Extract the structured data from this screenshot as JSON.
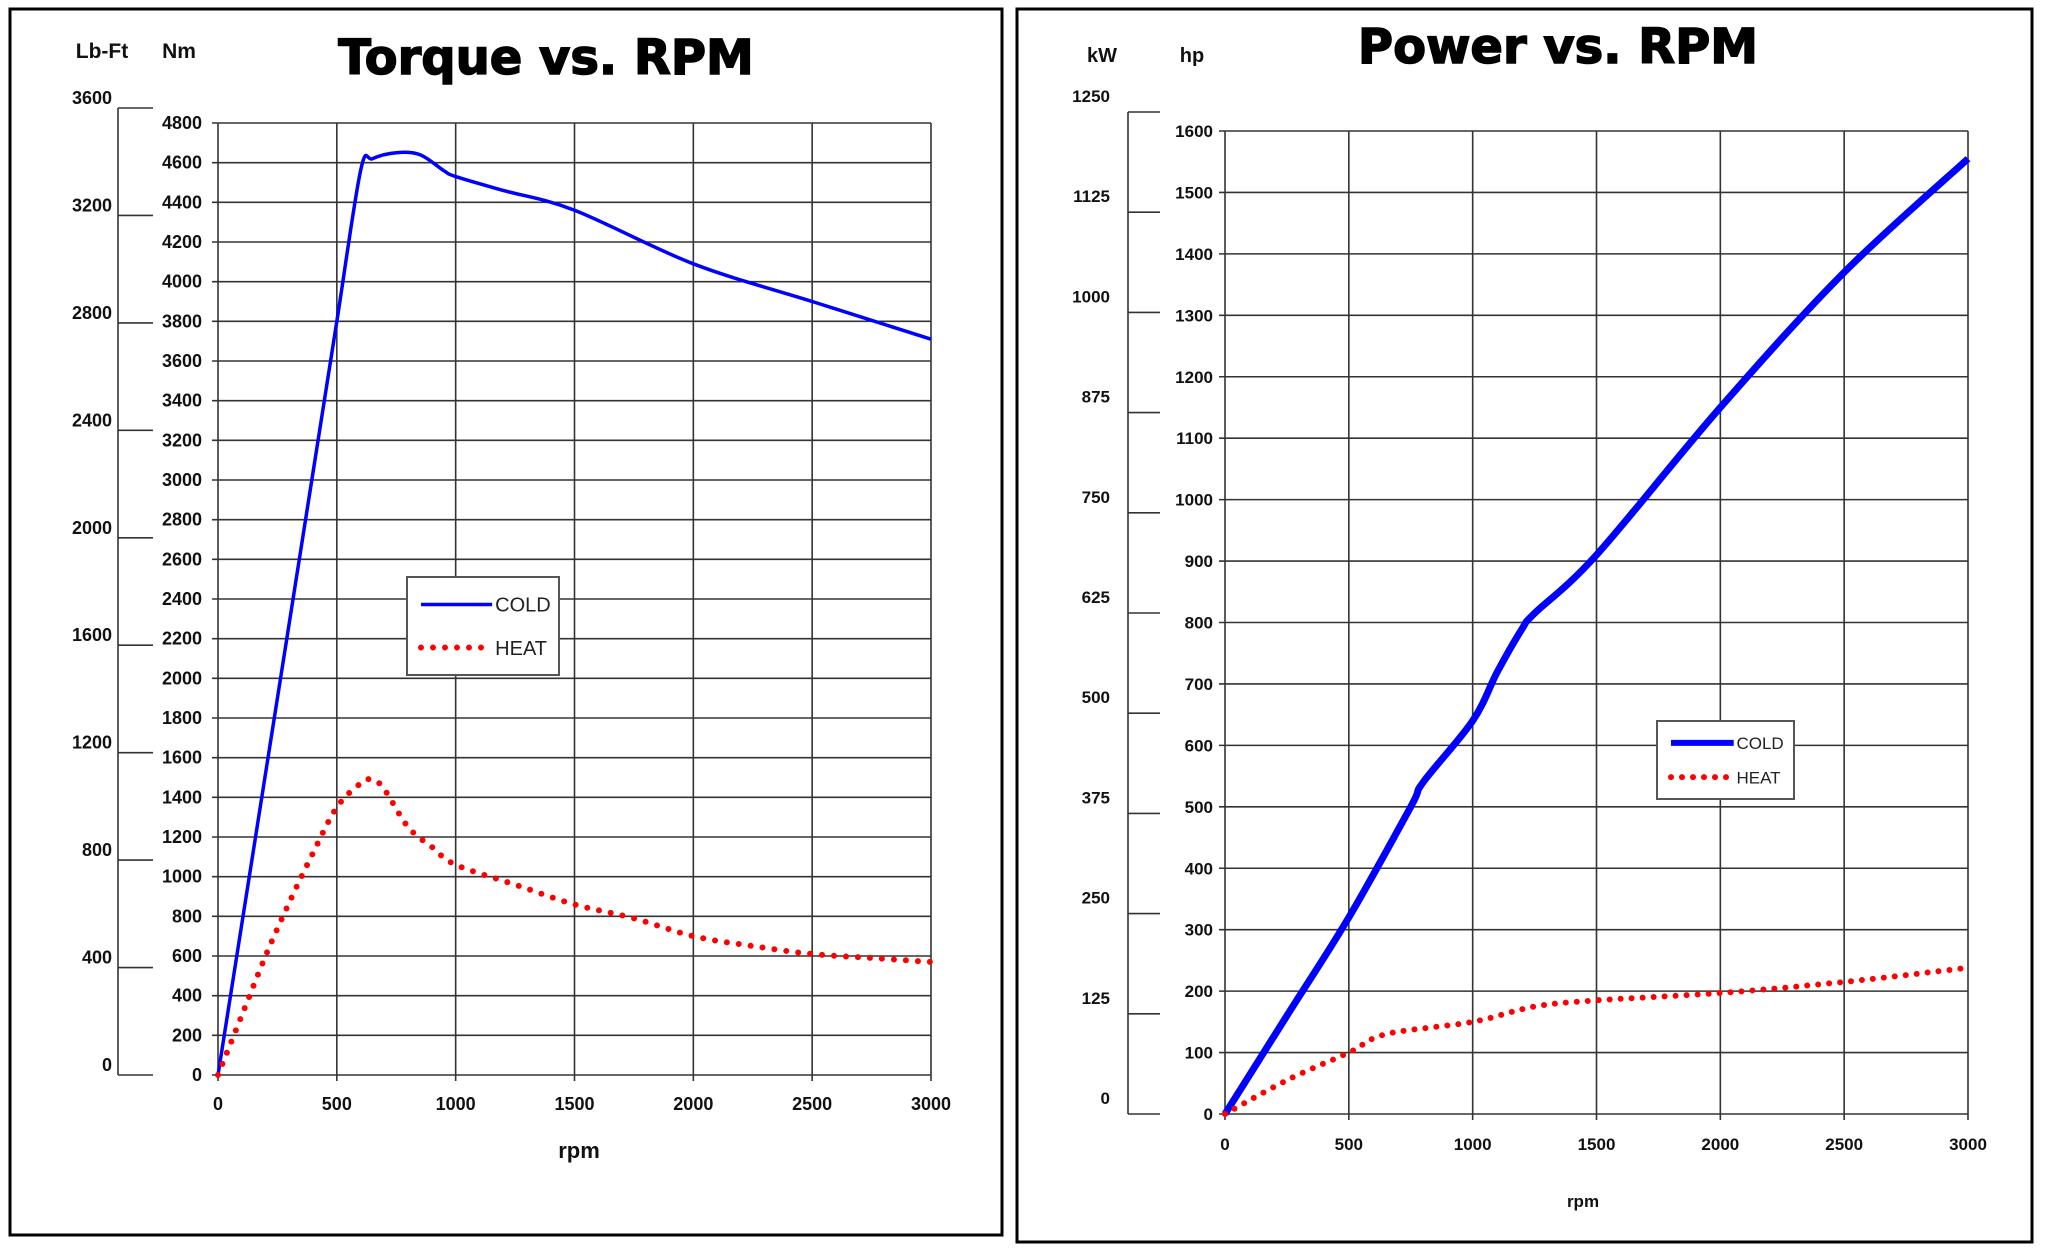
{
  "chart_data": [
    {
      "type": "line",
      "title": "Torque vs. RPM",
      "xlabel": "rpm",
      "ylabel": "Nm",
      "y2label": "Lb-Ft",
      "xlim": [
        0,
        3000
      ],
      "ylim": [
        0,
        4800
      ],
      "y2lim": [
        0,
        3600
      ],
      "xticks": [
        "0",
        "500",
        "1000",
        "1500",
        "2000",
        "2500",
        "3000"
      ],
      "yticks": [
        "0",
        "200",
        "400",
        "600",
        "800",
        "1000",
        "1200",
        "1400",
        "1600",
        "1800",
        "2000",
        "2200",
        "2400",
        "2600",
        "2800",
        "3000",
        "3200",
        "3400",
        "3600",
        "3800",
        "4000",
        "4200",
        "4400",
        "4600",
        "4800"
      ],
      "y2ticks": [
        "0",
        "400",
        "800",
        "1200",
        "1600",
        "2000",
        "2400",
        "2800",
        "3200",
        "3600"
      ],
      "grid": true,
      "legend": "center",
      "series": [
        {
          "name": "COLD",
          "color": "#0000ff",
          "style": "solid",
          "x": [
            0,
            100,
            200,
            300,
            400,
            500,
            600,
            650,
            750,
            850,
            950,
            1000,
            1200,
            1500,
            2000,
            2500,
            3000
          ],
          "y": [
            0,
            760,
            1520,
            2280,
            3040,
            3800,
            4560,
            4620,
            4650,
            4640,
            4560,
            4530,
            4460,
            4360,
            4090,
            3900,
            3710
          ]
        },
        {
          "name": "HEAT",
          "color": "#ff0000",
          "style": "dotted",
          "x": [
            0,
            100,
            200,
            300,
            400,
            500,
            600,
            650,
            700,
            800,
            900,
            1000,
            1250,
            1500,
            1750,
            2000,
            2250,
            2500,
            2750,
            3000
          ],
          "y": [
            0,
            300,
            600,
            870,
            1120,
            1350,
            1470,
            1490,
            1440,
            1250,
            1150,
            1060,
            960,
            860,
            790,
            700,
            650,
            610,
            590,
            570
          ]
        }
      ]
    },
    {
      "type": "line",
      "title": "Power vs. RPM",
      "xlabel": "rpm",
      "ylabel": "hp",
      "y2label": "kW",
      "xlim": [
        0,
        3000
      ],
      "ylim": [
        0,
        1600
      ],
      "y2lim": [
        0,
        1250
      ],
      "xticks": [
        "0",
        "500",
        "1000",
        "1500",
        "2000",
        "2500",
        "3000"
      ],
      "yticks": [
        "0",
        "100",
        "200",
        "300",
        "400",
        "500",
        "600",
        "700",
        "800",
        "900",
        "1000",
        "1100",
        "1200",
        "1300",
        "1400",
        "1500",
        "1600"
      ],
      "y2ticks": [
        "0",
        "125",
        "250",
        "375",
        "500",
        "625",
        "750",
        "875",
        "1000",
        "1125",
        "1250"
      ],
      "grid": true,
      "legend": "center-right",
      "series": [
        {
          "name": "COLD",
          "color": "#0000ff",
          "style": "solid",
          "x": [
            0,
            250,
            500,
            750,
            800,
            1000,
            1100,
            1200,
            1250,
            1500,
            2000,
            2500,
            3000
          ],
          "y": [
            0,
            160,
            320,
            500,
            540,
            640,
            720,
            790,
            815,
            910,
            1150,
            1370,
            1555
          ]
        },
        {
          "name": "HEAT",
          "color": "#ff0000",
          "style": "dotted",
          "x": [
            0,
            250,
            500,
            650,
            1000,
            1250,
            1500,
            2000,
            2500,
            3000
          ],
          "y": [
            0,
            55,
            100,
            130,
            150,
            175,
            185,
            197,
            215,
            238
          ]
        }
      ]
    }
  ]
}
